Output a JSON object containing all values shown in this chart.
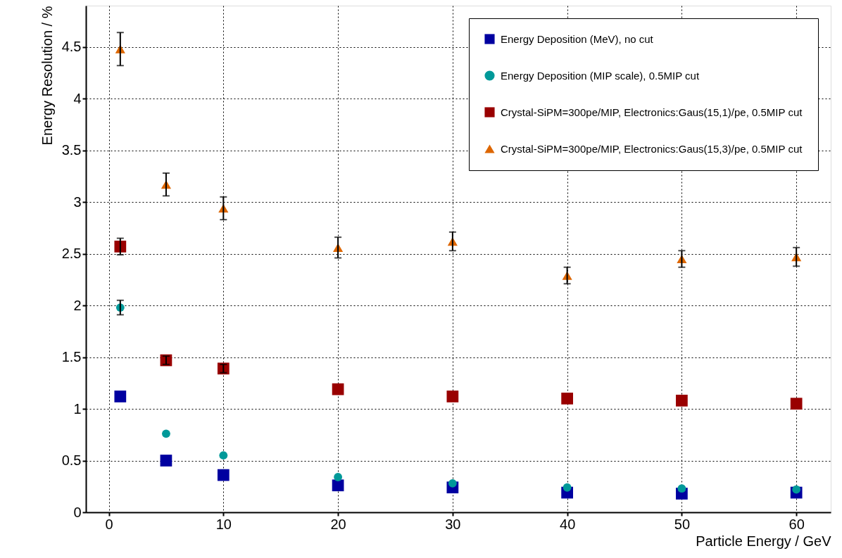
{
  "chart_data": {
    "type": "scatter",
    "xlabel": "Particle Energy / GeV",
    "ylabel": "Energy Resolution / %",
    "x": [
      1,
      5,
      10,
      20,
      30,
      40,
      50,
      60
    ],
    "xlim": [
      -2,
      63
    ],
    "xticks": [
      0,
      10,
      20,
      30,
      40,
      50,
      60
    ],
    "ylim": [
      0,
      4.9
    ],
    "yticks": [
      0,
      0.5,
      1,
      1.5,
      2,
      2.5,
      3,
      3.5,
      4,
      4.5
    ],
    "grid": true,
    "legend": "top right",
    "series": [
      {
        "name": "Energy Deposition (MeV), no cut",
        "color": "#0000a0",
        "marker": "square",
        "values": [
          1.12,
          0.5,
          0.36,
          0.26,
          0.24,
          0.19,
          0.18,
          0.19
        ]
      },
      {
        "name": "Energy Deposition (MIP scale), 0.5MIP cut",
        "color": "#009999",
        "marker": "circle",
        "values": [
          1.98,
          0.76,
          0.55,
          0.34,
          0.28,
          0.24,
          0.23,
          0.22
        ],
        "errors": [
          0.07,
          null,
          null,
          null,
          null,
          null,
          null,
          null
        ]
      },
      {
        "name": "Crystal-SiPM=300pe/MIP, Electronics:Gaus(15,1)/pe, 0.5MIP cut",
        "color": "#990000",
        "marker": "square",
        "values": [
          2.57,
          1.47,
          1.39,
          1.19,
          1.12,
          1.1,
          1.08,
          1.05
        ],
        "errors": [
          0.08,
          0.04,
          0.04,
          null,
          null,
          null,
          null,
          null
        ]
      },
      {
        "name": "Crystal-SiPM=300pe/MIP, Electronics:Gaus(15,3)/pe, 0.5MIP cut",
        "color": "#dd6600",
        "marker": "triangle",
        "values": [
          4.48,
          3.17,
          2.94,
          2.56,
          2.62,
          2.29,
          2.45,
          2.47
        ],
        "errors": [
          0.16,
          0.11,
          0.11,
          0.1,
          0.09,
          0.08,
          0.08,
          0.09
        ]
      }
    ]
  }
}
